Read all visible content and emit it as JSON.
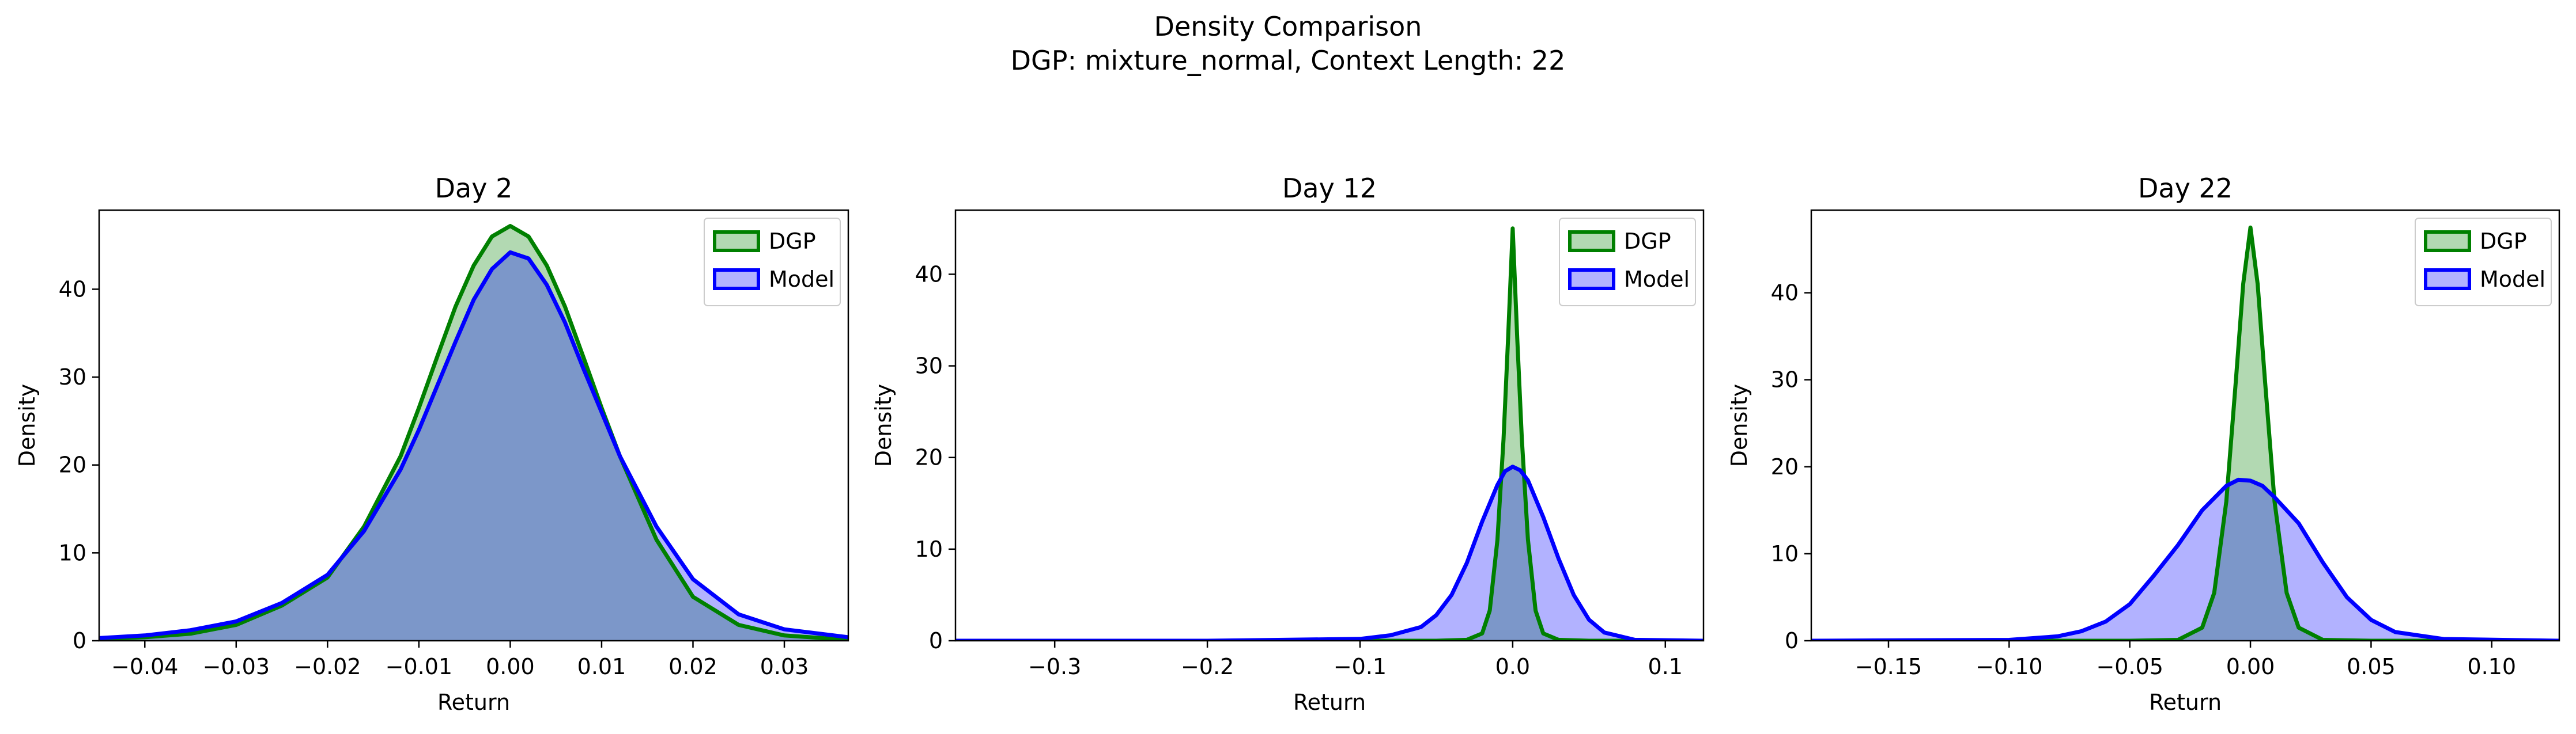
{
  "figure": {
    "title": "Density Comparison",
    "subtitle": "DGP: mixture_normal, Context Length: 22"
  },
  "colors": {
    "dgp_line": "#008000",
    "dgp_fill": "#008000",
    "model_line": "#0000ff",
    "model_fill": "#0000ff"
  },
  "chart_data": [
    {
      "type": "area",
      "title": "Day 2",
      "xlabel": "Return",
      "ylabel": "Density",
      "xlim": [
        -0.045,
        0.037
      ],
      "ylim": [
        0,
        49
      ],
      "xticks": [
        -0.04,
        -0.03,
        -0.02,
        -0.01,
        0.0,
        0.01,
        0.02,
        0.03
      ],
      "xtick_labels": [
        "−0.04",
        "−0.03",
        "−0.02",
        "−0.01",
        "0.00",
        "0.01",
        "0.02",
        "0.03"
      ],
      "yticks": [
        0,
        10,
        20,
        30,
        40
      ],
      "ytick_labels": [
        "0",
        "10",
        "20",
        "30",
        "40"
      ],
      "legend": "top-right",
      "series": [
        {
          "name": "DGP",
          "x": [
            -0.045,
            -0.04,
            -0.035,
            -0.03,
            -0.025,
            -0.02,
            -0.016,
            -0.012,
            -0.01,
            -0.008,
            -0.006,
            -0.004,
            -0.002,
            0.0,
            0.002,
            0.004,
            0.006,
            0.008,
            0.01,
            0.012,
            0.016,
            0.02,
            0.025,
            0.03,
            0.037
          ],
          "y": [
            0.2,
            0.4,
            0.8,
            1.8,
            4.0,
            7.2,
            13.0,
            21.0,
            26.5,
            32.3,
            38.0,
            42.7,
            46.0,
            47.2,
            46.0,
            42.7,
            38.0,
            32.3,
            26.5,
            21.0,
            11.5,
            5.0,
            1.8,
            0.6,
            0.1
          ]
        },
        {
          "name": "Model",
          "x": [
            -0.045,
            -0.04,
            -0.035,
            -0.03,
            -0.025,
            -0.02,
            -0.016,
            -0.012,
            -0.01,
            -0.008,
            -0.006,
            -0.004,
            -0.002,
            0.0,
            0.002,
            0.004,
            0.006,
            0.008,
            0.01,
            0.012,
            0.016,
            0.02,
            0.025,
            0.03,
            0.037
          ],
          "y": [
            0.3,
            0.6,
            1.2,
            2.2,
            4.3,
            7.5,
            12.5,
            19.5,
            24.0,
            29.0,
            34.0,
            38.8,
            42.3,
            44.2,
            43.5,
            40.5,
            36.2,
            31.0,
            26.0,
            21.0,
            13.0,
            7.0,
            3.0,
            1.3,
            0.4
          ]
        }
      ]
    },
    {
      "type": "area",
      "title": "Day 12",
      "xlabel": "Return",
      "ylabel": "Density",
      "xlim": [
        -0.365,
        0.125
      ],
      "ylim": [
        0,
        47
      ],
      "xticks": [
        -0.3,
        -0.2,
        -0.1,
        0.0,
        0.1
      ],
      "xtick_labels": [
        "−0.3",
        "−0.2",
        "−0.1",
        "0.0",
        "0.1"
      ],
      "yticks": [
        0,
        10,
        20,
        30,
        40
      ],
      "ytick_labels": [
        "0",
        "10",
        "20",
        "30",
        "40"
      ],
      "legend": "top-right",
      "series": [
        {
          "name": "DGP",
          "x": [
            -0.365,
            -0.2,
            -0.1,
            -0.05,
            -0.03,
            -0.02,
            -0.015,
            -0.01,
            -0.006,
            -0.003,
            0.0,
            0.003,
            0.006,
            0.01,
            0.015,
            0.02,
            0.03,
            0.05,
            0.125
          ],
          "y": [
            0.0,
            0.0,
            0.0,
            0.0,
            0.1,
            0.8,
            3.3,
            11.0,
            22.0,
            33.0,
            45.0,
            33.0,
            22.0,
            11.0,
            3.3,
            0.8,
            0.1,
            0.0,
            0.0
          ]
        },
        {
          "name": "Model",
          "x": [
            -0.365,
            -0.2,
            -0.1,
            -0.08,
            -0.06,
            -0.05,
            -0.04,
            -0.03,
            -0.02,
            -0.01,
            -0.005,
            0.0,
            0.005,
            0.01,
            0.02,
            0.03,
            0.04,
            0.05,
            0.06,
            0.08,
            0.125
          ],
          "y": [
            0.0,
            0.0,
            0.2,
            0.6,
            1.5,
            2.8,
            5.0,
            8.5,
            13.0,
            17.0,
            18.5,
            19.0,
            18.6,
            17.5,
            13.5,
            9.0,
            5.0,
            2.3,
            0.9,
            0.1,
            0.0
          ]
        }
      ]
    },
    {
      "type": "area",
      "title": "Day 22",
      "xlabel": "Return",
      "ylabel": "Density",
      "xlim": [
        -0.182,
        0.128
      ],
      "ylim": [
        0,
        49.5
      ],
      "xticks": [
        -0.15,
        -0.1,
        -0.05,
        0.0,
        0.05,
        0.1
      ],
      "xtick_labels": [
        "−0.15",
        "−0.10",
        "−0.05",
        "0.00",
        "0.05",
        "0.10"
      ],
      "yticks": [
        0,
        10,
        20,
        30,
        40
      ],
      "ytick_labels": [
        "0",
        "10",
        "20",
        "30",
        "40"
      ],
      "legend": "top-right",
      "series": [
        {
          "name": "DGP",
          "x": [
            -0.182,
            -0.05,
            -0.03,
            -0.02,
            -0.015,
            -0.01,
            -0.006,
            -0.003,
            0.0,
            0.003,
            0.006,
            0.01,
            0.015,
            0.02,
            0.03,
            0.05,
            0.128
          ],
          "y": [
            0.0,
            0.0,
            0.1,
            1.5,
            5.5,
            16.0,
            30.0,
            41.0,
            47.5,
            41.0,
            30.0,
            16.0,
            5.5,
            1.5,
            0.1,
            0.0,
            0.0
          ]
        },
        {
          "name": "Model",
          "x": [
            -0.182,
            -0.1,
            -0.08,
            -0.07,
            -0.06,
            -0.05,
            -0.04,
            -0.03,
            -0.02,
            -0.01,
            -0.005,
            0.0,
            0.005,
            0.01,
            0.02,
            0.03,
            0.04,
            0.05,
            0.06,
            0.08,
            0.128
          ],
          "y": [
            0.0,
            0.1,
            0.5,
            1.1,
            2.2,
            4.2,
            7.5,
            11.0,
            15.0,
            17.8,
            18.5,
            18.4,
            17.8,
            16.5,
            13.5,
            9.0,
            5.0,
            2.4,
            1.0,
            0.2,
            0.0
          ]
        }
      ]
    }
  ]
}
